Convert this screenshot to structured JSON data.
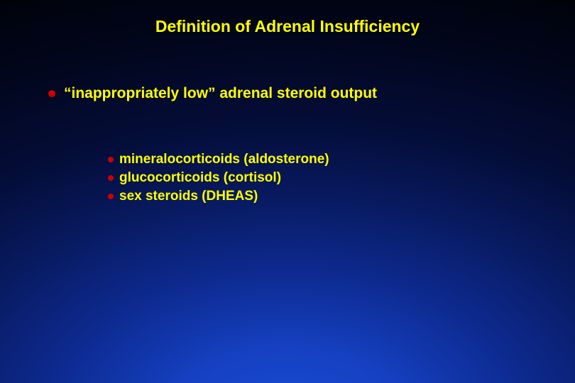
{
  "slide": {
    "title": "Definition of Adrenal Insufficiency",
    "main_point": "“inappropriately low” adrenal steroid output",
    "sub_points": [
      "mineralocorticoids (aldosterone)",
      "glucocorticoids (cortisol)",
      "sex steroids (DHEAS)"
    ]
  },
  "styling": {
    "title_color": "#ffff00",
    "text_color": "#ffff00",
    "bullet_color": "#cc0000",
    "title_fontsize": 23,
    "main_fontsize": 21,
    "sub_fontsize": 19,
    "background_gradient": {
      "type": "radial",
      "center_color": "#1a4dd9",
      "edge_color": "#000000"
    }
  }
}
